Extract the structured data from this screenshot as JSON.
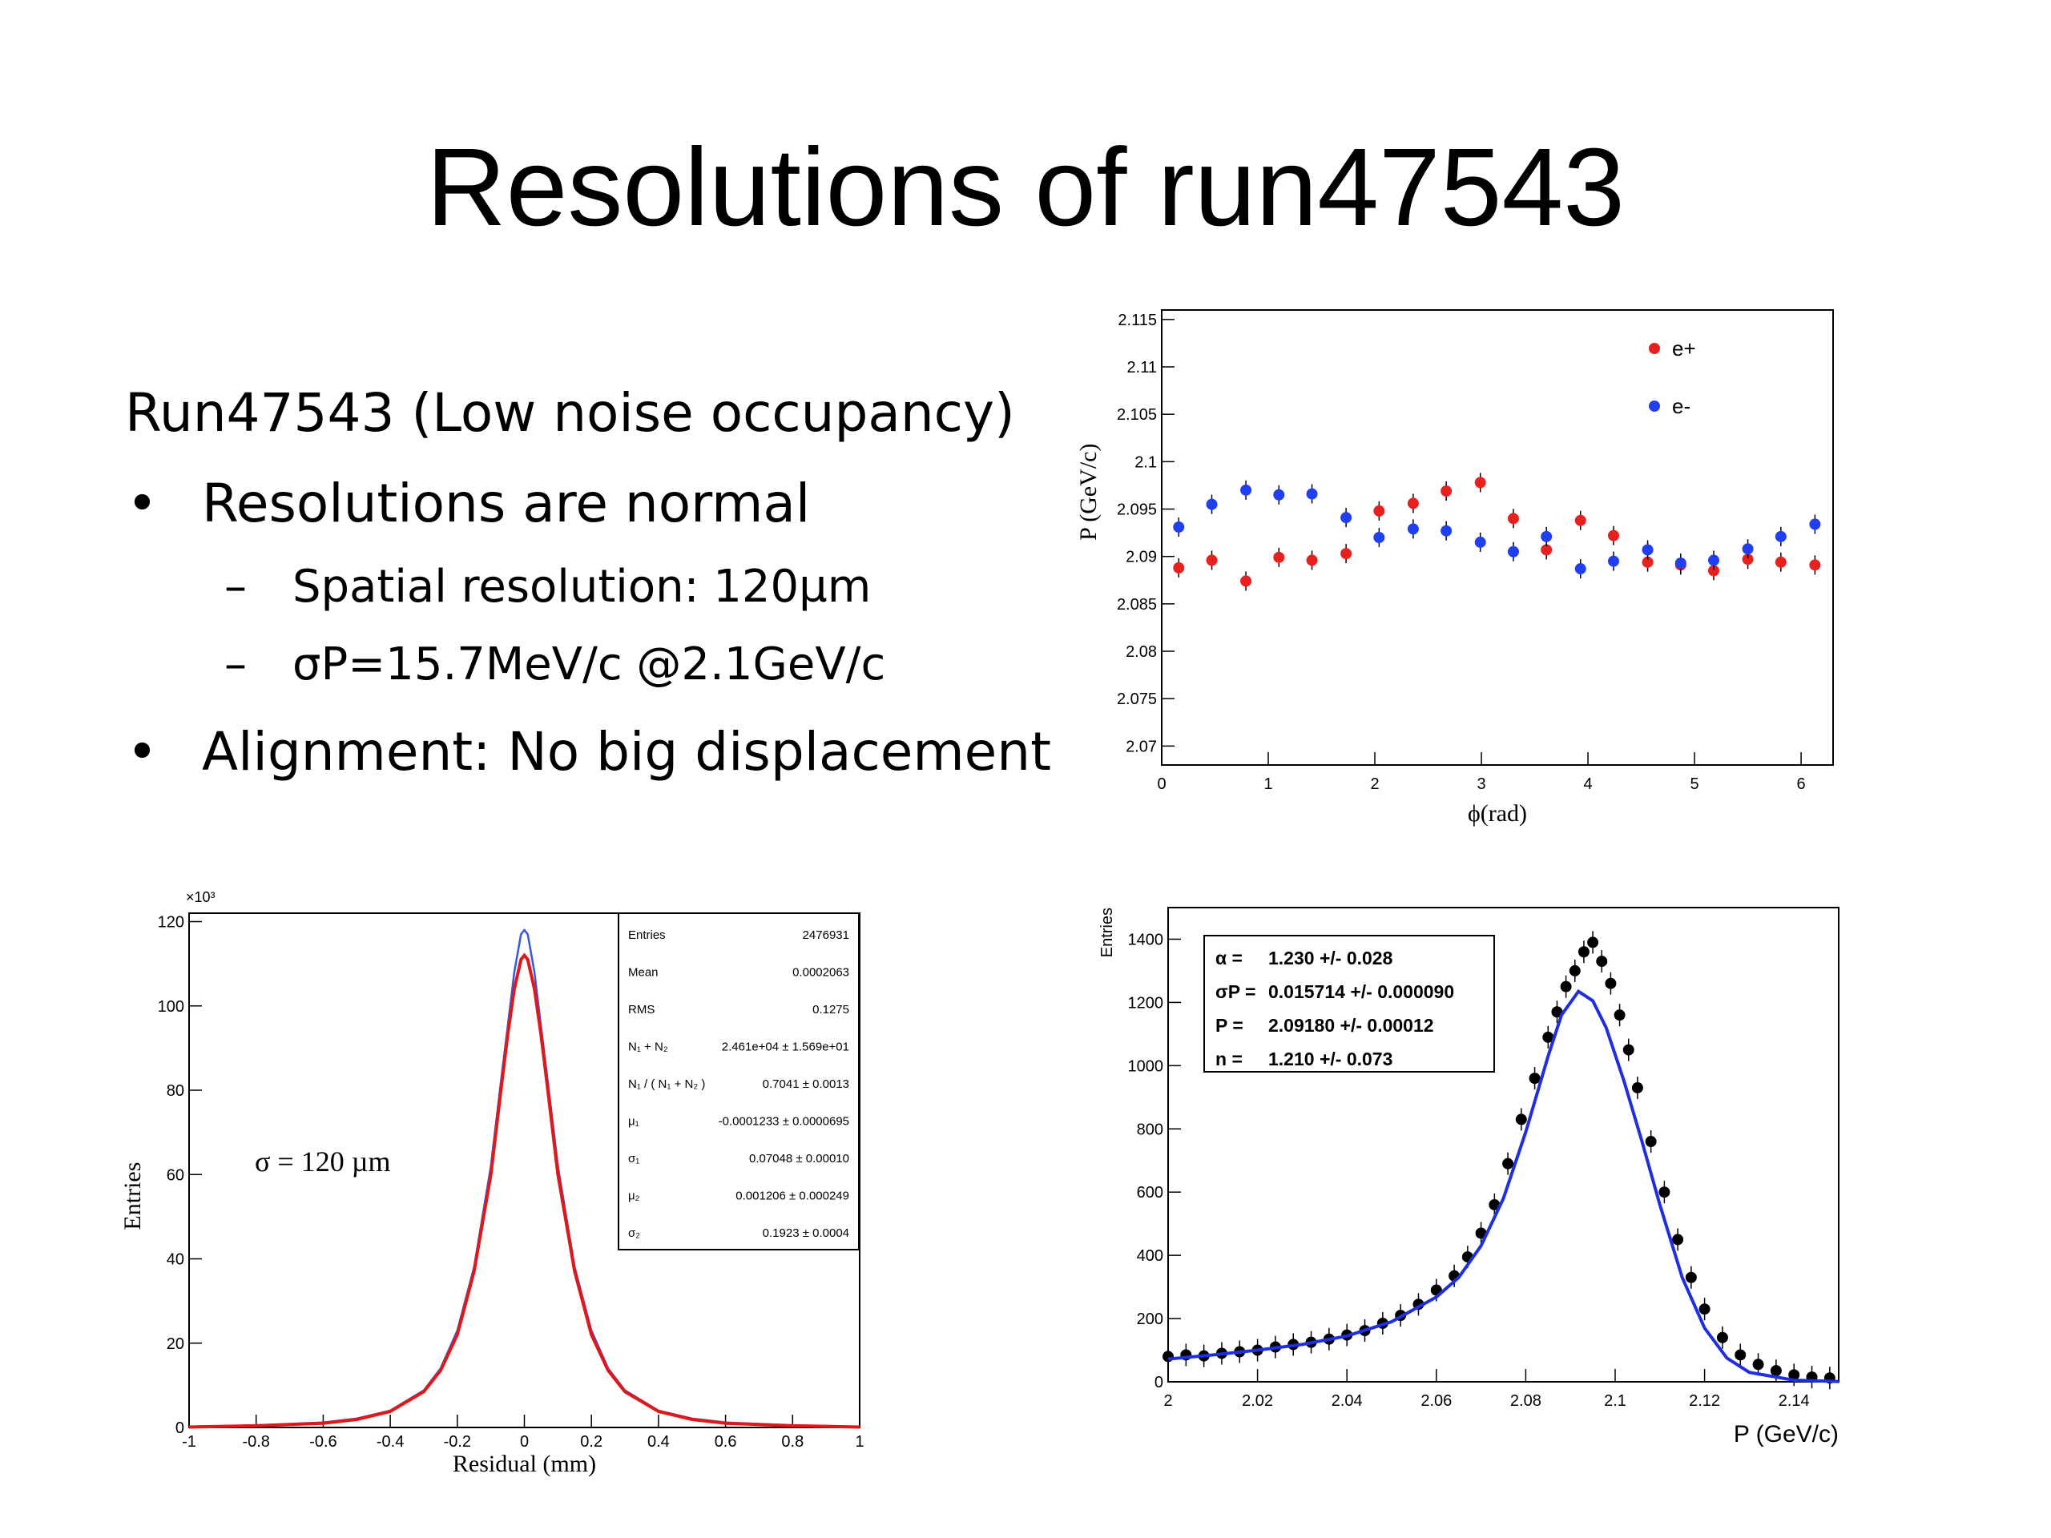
{
  "slide": {
    "title": "Resolutions of run47543",
    "intro": "Run47543 (Low noise occupancy)",
    "bullet_glyph": "•",
    "dash_glyph": "–",
    "bullets": [
      {
        "text": "Resolutions are normal",
        "sub": [
          "Spatial resolution: 120µm",
          "σP=15.7MeV/c @2.1GeV/c"
        ]
      },
      {
        "text": "Alignment: No big displacement",
        "sub": []
      }
    ]
  },
  "colors": {
    "e_plus": "#e8211e",
    "e_minus": "#1f3ff0",
    "fit_red": "#e01818",
    "hist_blue": "#3a55e0",
    "fit_blue": "#1f2fe0"
  },
  "chart_data": [
    {
      "id": "momentum_vs_phi",
      "type": "scatter",
      "xlabel": "ϕ(rad)",
      "ylabel": "P (GeV/c)",
      "xlim": [
        0,
        6.3
      ],
      "ylim": [
        2.068,
        2.116
      ],
      "xticks": [
        0,
        1,
        2,
        3,
        4,
        5,
        6
      ],
      "yticks": [
        2.07,
        2.075,
        2.08,
        2.085,
        2.09,
        2.095,
        2.1,
        2.105,
        2.11,
        2.115
      ],
      "legend_position": "top-right",
      "series": [
        {
          "name": "e+",
          "color": "#e8211e",
          "x": [
            0.16,
            0.47,
            0.79,
            1.1,
            1.41,
            1.73,
            2.04,
            2.36,
            2.67,
            2.99,
            3.3,
            3.61,
            3.93,
            4.24,
            4.56,
            4.87,
            5.18,
            5.5,
            5.81,
            6.13
          ],
          "y": [
            2.0888,
            2.0896,
            2.0874,
            2.0899,
            2.0896,
            2.0903,
            2.0948,
            2.0956,
            2.0969,
            2.0978,
            2.094,
            2.0907,
            2.0938,
            2.0922,
            2.0894,
            2.0891,
            2.0885,
            2.0897,
            2.0894,
            2.0891
          ]
        },
        {
          "name": "e-",
          "color": "#1f3ff0",
          "x": [
            0.16,
            0.47,
            0.79,
            1.1,
            1.41,
            1.73,
            2.04,
            2.36,
            2.67,
            2.99,
            3.3,
            3.61,
            3.93,
            4.24,
            4.56,
            4.87,
            5.18,
            5.5,
            5.81,
            6.13
          ],
          "y": [
            2.0931,
            2.0955,
            2.097,
            2.0965,
            2.0966,
            2.0941,
            2.092,
            2.0929,
            2.0927,
            2.0915,
            2.0905,
            2.0921,
            2.0887,
            2.0895,
            2.0907,
            2.0893,
            2.0896,
            2.0908,
            2.0921,
            2.0934
          ]
        }
      ]
    },
    {
      "id": "residual_histogram",
      "type": "line",
      "xlabel": "Residual (mm)",
      "ylabel": "Entries",
      "y_multiplier": "×10³",
      "xlim": [
        -1,
        1
      ],
      "ylim": [
        0,
        122
      ],
      "xticks": [
        -1,
        -0.8,
        -0.6,
        -0.4,
        -0.2,
        0,
        0.2,
        0.4,
        0.6,
        0.8,
        1
      ],
      "yticks": [
        0,
        20,
        40,
        60,
        80,
        100,
        120
      ],
      "annotation": "σ = 120 µm",
      "series": [
        {
          "name": "histogram",
          "color": "#3a55e0",
          "x": [
            -1,
            -0.8,
            -0.6,
            -0.5,
            -0.4,
            -0.3,
            -0.25,
            -0.2,
            -0.15,
            -0.1,
            -0.07,
            -0.05,
            -0.03,
            -0.01,
            0,
            0.01,
            0.03,
            0.05,
            0.07,
            0.1,
            0.15,
            0.2,
            0.25,
            0.3,
            0.4,
            0.5,
            0.6,
            0.8,
            1
          ],
          "y": [
            0.2,
            0.5,
            1.2,
            2.1,
            4.0,
            8.8,
            14,
            23,
            38,
            62,
            82,
            95,
            108,
            117,
            118,
            117,
            108,
            95,
            82,
            62,
            38,
            23,
            14,
            8.8,
            4.0,
            2.1,
            1.2,
            0.5,
            0.2
          ]
        },
        {
          "name": "fit",
          "color": "#e01818",
          "x": [
            -1,
            -0.8,
            -0.6,
            -0.5,
            -0.4,
            -0.3,
            -0.25,
            -0.2,
            -0.15,
            -0.1,
            -0.07,
            -0.05,
            -0.03,
            -0.01,
            0,
            0.01,
            0.03,
            0.05,
            0.07,
            0.1,
            0.15,
            0.2,
            0.25,
            0.3,
            0.4,
            0.5,
            0.6,
            0.8,
            1
          ],
          "y": [
            0.1,
            0.4,
            1.0,
            1.9,
            3.8,
            8.5,
            13.5,
            22,
            37,
            60,
            80,
            93,
            104,
            111,
            112,
            111,
            104,
            93,
            80,
            60,
            37,
            22,
            13.5,
            8.5,
            3.8,
            1.9,
            1.0,
            0.4,
            0.1
          ]
        }
      ],
      "stats_box": [
        {
          "label": "Entries",
          "value": "2476931"
        },
        {
          "label": "Mean",
          "value": "0.0002063"
        },
        {
          "label": "RMS",
          "value": "0.1275"
        },
        {
          "label": "N₁ + N₂",
          "value": "2.461e+04 ± 1.569e+01"
        },
        {
          "label": "N₁ / ( N₁ + N₂ )",
          "value": "0.7041 ± 0.0013"
        },
        {
          "label": "μ₁",
          "value": "-0.0001233 ± 0.0000695"
        },
        {
          "label": "σ₁",
          "value": "0.07048 ± 0.00010"
        },
        {
          "label": "μ₂",
          "value": "0.001206 ± 0.000249"
        },
        {
          "label": "σ₂",
          "value": "0.1923 ± 0.0004"
        }
      ]
    },
    {
      "id": "momentum_distribution",
      "type": "scatter",
      "xlabel": "P (GeV/c)",
      "ylabel": "Entries",
      "xlim": [
        2.0,
        2.15
      ],
      "ylim": [
        0,
        1500
      ],
      "xticks": [
        2,
        2.02,
        2.04,
        2.06,
        2.08,
        2.1,
        2.12,
        2.14
      ],
      "yticks": [
        0,
        200,
        400,
        600,
        800,
        1000,
        1200,
        1400
      ],
      "series": [
        {
          "name": "data",
          "color": "#000000",
          "x": [
            2.0,
            2.004,
            2.008,
            2.012,
            2.016,
            2.02,
            2.024,
            2.028,
            2.032,
            2.036,
            2.04,
            2.044,
            2.048,
            2.052,
            2.056,
            2.06,
            2.064,
            2.067,
            2.07,
            2.073,
            2.076,
            2.079,
            2.082,
            2.085,
            2.087,
            2.089,
            2.091,
            2.093,
            2.095,
            2.097,
            2.099,
            2.101,
            2.103,
            2.105,
            2.108,
            2.111,
            2.114,
            2.117,
            2.12,
            2.124,
            2.128,
            2.132,
            2.136,
            2.14,
            2.144,
            2.148
          ],
          "y": [
            80,
            85,
            82,
            90,
            95,
            100,
            110,
            118,
            125,
            135,
            148,
            162,
            185,
            210,
            245,
            290,
            335,
            395,
            470,
            560,
            690,
            830,
            960,
            1090,
            1170,
            1250,
            1300,
            1360,
            1390,
            1330,
            1260,
            1160,
            1050,
            930,
            760,
            600,
            450,
            330,
            230,
            140,
            85,
            55,
            35,
            22,
            15,
            12
          ]
        },
        {
          "name": "fit",
          "color": "#1f2fe0",
          "x": [
            2.0,
            2.01,
            2.02,
            2.03,
            2.04,
            2.05,
            2.06,
            2.065,
            2.07,
            2.075,
            2.08,
            2.085,
            2.088,
            2.0918,
            2.095,
            2.098,
            2.102,
            2.106,
            2.11,
            2.115,
            2.12,
            2.125,
            2.13,
            2.14,
            2.15
          ],
          "y": [
            72,
            85,
            100,
            118,
            145,
            190,
            268,
            330,
            430,
            580,
            790,
            1030,
            1160,
            1235,
            1205,
            1120,
            950,
            760,
            560,
            330,
            170,
            75,
            30,
            5,
            1
          ]
        }
      ],
      "fit_box": [
        {
          "label": "α =",
          "value": "1.230 +/- 0.028"
        },
        {
          "label": "σP =",
          "value": "0.015714 +/- 0.000090"
        },
        {
          "label": "P =",
          "value": "2.09180 +/- 0.00012"
        },
        {
          "label": "n =",
          "value": "1.210 +/- 0.073"
        }
      ]
    }
  ]
}
